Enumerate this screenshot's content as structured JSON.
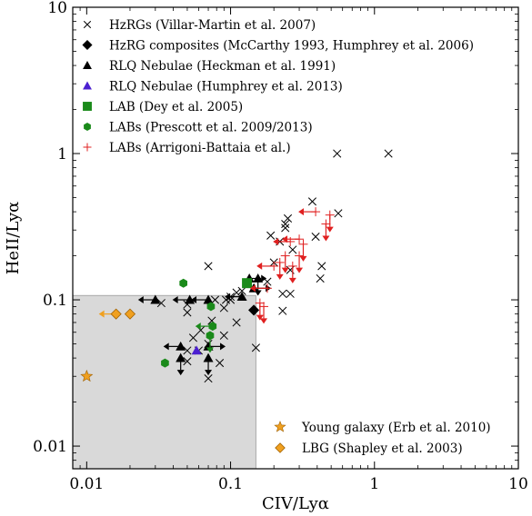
{
  "chart_data": {
    "type": "scatter",
    "xlabel": "CIV/Lyα",
    "ylabel": "HeII/Lyα",
    "xscale": "log",
    "yscale": "log",
    "xlim": [
      0.008,
      10
    ],
    "ylim": [
      0.007,
      10
    ],
    "x_ticks": [
      {
        "v": 0.01,
        "label": "0.01"
      },
      {
        "v": 0.1,
        "label": "0.1"
      },
      {
        "v": 1,
        "label": "1"
      },
      {
        "v": 10,
        "label": "10"
      }
    ],
    "y_ticks": [
      {
        "v": 0.01,
        "label": "0.01"
      },
      {
        "v": 0.1,
        "label": "0.1"
      },
      {
        "v": 1,
        "label": "1"
      },
      {
        "v": 10,
        "label": "10"
      }
    ],
    "shaded_region": {
      "x": [
        0.008,
        0.15
      ],
      "y": [
        0.007,
        0.107
      ],
      "color": "#d9d9d9"
    },
    "legend_upper": [
      {
        "label": "HzRGs (Villar-Martin et al. 2007)",
        "marker": "x",
        "color": "#000000"
      },
      {
        "label": "HzRG composites (McCarthy 1993, Humphrey et al. 2006)",
        "marker": "diamond",
        "color": "#000000"
      },
      {
        "label": "RLQ Nebulae (Heckman et al. 1991)",
        "marker": "triangle",
        "color": "#000000"
      },
      {
        "label": "RLQ Nebulae (Humphrey et al. 2013)",
        "marker": "triangle",
        "color": "#4b1fd0"
      },
      {
        "label": "LAB (Dey et al. 2005)",
        "marker": "square",
        "color": "#1a8a1a"
      },
      {
        "label": "LABs (Prescott et al. 2009/2013)",
        "marker": "hexagon",
        "color": "#1a8a1a"
      },
      {
        "label": "LABs (Arrigoni-Battaia et al.)",
        "marker": "plus",
        "color": "#e02020"
      }
    ],
    "legend_lower": [
      {
        "label": "Young galaxy (Erb et al. 2010)",
        "marker": "star",
        "color": "#f0a020"
      },
      {
        "label": "LBG (Shapley et al. 2003)",
        "marker": "diamond",
        "color": "#f0a020"
      }
    ],
    "series": [
      {
        "name": "HzRGs (Villar-Martin et al. 2007)",
        "marker": "x",
        "color": "#000000",
        "points": [
          [
            0.55,
            1.0
          ],
          [
            1.25,
            1.0
          ],
          [
            0.37,
            0.47
          ],
          [
            0.56,
            0.39
          ],
          [
            0.39,
            0.27
          ],
          [
            0.43,
            0.17
          ],
          [
            0.42,
            0.14
          ],
          [
            0.19,
            0.275
          ],
          [
            0.24,
            0.33
          ],
          [
            0.25,
            0.36
          ],
          [
            0.24,
            0.31
          ],
          [
            0.22,
            0.25
          ],
          [
            0.2,
            0.18
          ],
          [
            0.26,
            0.16
          ],
          [
            0.27,
            0.22
          ],
          [
            0.23,
            0.11
          ],
          [
            0.26,
            0.11
          ],
          [
            0.23,
            0.084
          ],
          [
            0.18,
            0.133
          ],
          [
            0.07,
            0.17
          ],
          [
            0.078,
            0.1
          ],
          [
            0.093,
            0.1
          ],
          [
            0.1,
            0.105
          ],
          [
            0.11,
            0.112
          ],
          [
            0.12,
            0.115
          ],
          [
            0.1,
            0.1
          ],
          [
            0.09,
            0.088
          ],
          [
            0.11,
            0.07
          ],
          [
            0.074,
            0.072
          ],
          [
            0.07,
            0.05
          ],
          [
            0.06,
            0.045
          ],
          [
            0.05,
            0.038
          ],
          [
            0.07,
            0.029
          ],
          [
            0.084,
            0.037
          ],
          [
            0.055,
            0.055
          ],
          [
            0.062,
            0.062
          ],
          [
            0.05,
            0.082
          ],
          [
            0.05,
            0.093
          ],
          [
            0.033,
            0.095
          ],
          [
            0.09,
            0.057
          ],
          [
            0.15,
            0.047
          ],
          [
            0.05,
            0.045
          ]
        ]
      },
      {
        "name": "HzRG composites (McCarthy 1993, Humphrey et al. 2006)",
        "marker": "diamond",
        "color": "#000000",
        "points": [
          [
            0.145,
            0.085
          ]
        ]
      },
      {
        "name": "RLQ Nebulae (Heckman et al. 1991)",
        "marker": "triangle",
        "color": "#000000",
        "points": [
          [
            0.03,
            0.1
          ],
          [
            0.052,
            0.1
          ],
          [
            0.07,
            0.1
          ],
          [
            0.12,
            0.105
          ],
          [
            0.135,
            0.14
          ],
          [
            0.155,
            0.14
          ],
          [
            0.045,
            0.048
          ],
          [
            0.07,
            0.048
          ],
          [
            0.045,
            0.04
          ],
          [
            0.07,
            0.04
          ],
          [
            0.145,
            0.12
          ]
        ],
        "limits": [
          "left",
          "left",
          "left",
          "left",
          "right",
          "down",
          "left",
          "right",
          "down",
          "down",
          "right"
        ]
      },
      {
        "name": "RLQ Nebulae (Humphrey et al. 2013)",
        "marker": "triangle",
        "color": "#4b1fd0",
        "points": [
          [
            0.058,
            0.045
          ]
        ]
      },
      {
        "name": "LAB (Dey et al. 2005)",
        "marker": "square",
        "color": "#1a8a1a",
        "points": [
          [
            0.13,
            0.13
          ]
        ]
      },
      {
        "name": "LABs (Prescott et al. 2009/2013)",
        "marker": "hexagon",
        "color": "#1a8a1a",
        "points": [
          [
            0.047,
            0.13
          ],
          [
            0.035,
            0.037
          ],
          [
            0.073,
            0.09
          ],
          [
            0.075,
            0.066
          ],
          [
            0.072,
            0.057
          ]
        ],
        "limits": [
          "none",
          "none",
          "none",
          "left",
          "down"
        ]
      },
      {
        "name": "LABs (Arrigoni-Battaia et al.)",
        "marker": "plus",
        "color": "#e02020",
        "points": [
          [
            0.49,
            0.38
          ],
          [
            0.46,
            0.33
          ],
          [
            0.39,
            0.4
          ],
          [
            0.3,
            0.26
          ],
          [
            0.32,
            0.24
          ],
          [
            0.26,
            0.25
          ],
          [
            0.24,
            0.2
          ],
          [
            0.3,
            0.2
          ],
          [
            0.27,
            0.17
          ],
          [
            0.22,
            0.18
          ],
          [
            0.2,
            0.17
          ],
          [
            0.18,
            0.12
          ],
          [
            0.16,
            0.095
          ],
          [
            0.17,
            0.09
          ]
        ],
        "limits": [
          "down",
          "down",
          "left",
          "left",
          "down",
          "left",
          "down",
          "down",
          "down",
          "down",
          "left",
          "left",
          "down",
          "down"
        ]
      },
      {
        "name": "Young galaxy (Erb et al. 2010)",
        "marker": "star",
        "color": "#f0a020",
        "points": [
          [
            0.01,
            0.03
          ]
        ]
      },
      {
        "name": "LBG (Shapley et al. 2003)",
        "marker": "diamond",
        "color": "#f0a020",
        "points": [
          [
            0.02,
            0.08
          ],
          [
            0.016,
            0.08
          ]
        ],
        "limits": [
          "none",
          "left"
        ]
      }
    ]
  }
}
